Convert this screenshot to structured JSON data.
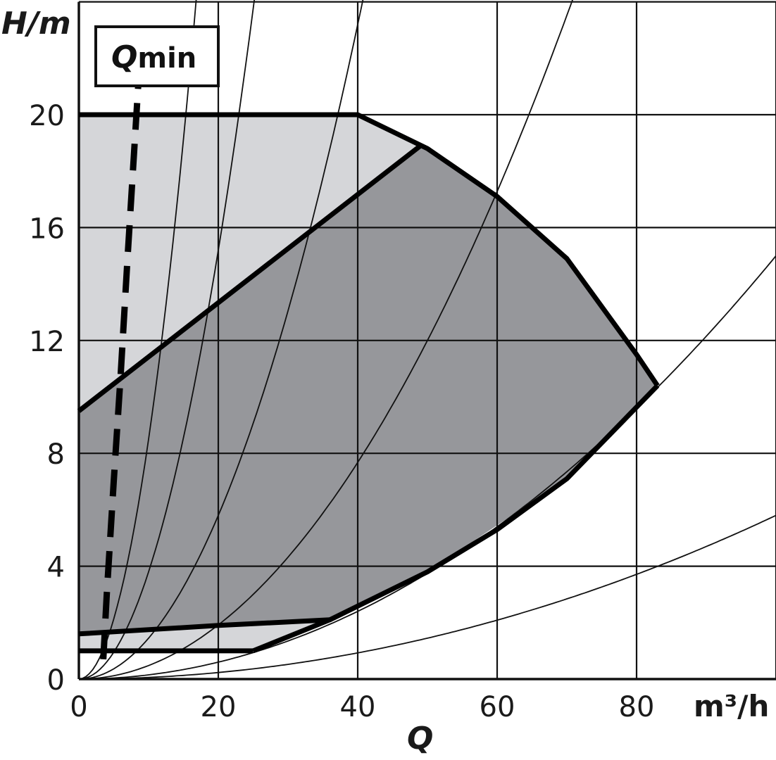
{
  "chart_data": {
    "type": "area",
    "xlabel": "Q",
    "xunit": "m³/h",
    "ylabel": "H/m",
    "xlim": [
      0,
      100
    ],
    "ylim": [
      0,
      24
    ],
    "x_ticks": [
      0,
      20,
      40,
      60,
      80
    ],
    "y_ticks": [
      0,
      4,
      8,
      12,
      16,
      20
    ],
    "grid": true,
    "annotation": "Qmin",
    "qmin_line": [
      [
        3.5,
        0.7
      ],
      [
        4,
        3
      ],
      [
        5,
        7
      ],
      [
        6,
        10.8
      ],
      [
        7,
        15
      ],
      [
        8.5,
        21
      ]
    ],
    "max_envelope": [
      [
        0,
        20
      ],
      [
        40,
        20
      ],
      [
        50,
        18.8
      ],
      [
        60,
        17.1
      ],
      [
        70,
        14.9
      ],
      [
        80,
        11.5
      ],
      [
        83,
        10.4
      ]
    ],
    "operating_region_light": [
      [
        0,
        20
      ],
      [
        40,
        20
      ],
      [
        49,
        18.9
      ],
      [
        0,
        9.5
      ]
    ],
    "operating_region_dark": [
      [
        0,
        9.5
      ],
      [
        49,
        18.9
      ],
      [
        60,
        17.1
      ],
      [
        70,
        14.9
      ],
      [
        80,
        11.5
      ],
      [
        83,
        10.4
      ],
      [
        70,
        7.1
      ],
      [
        50,
        3.8
      ],
      [
        36,
        2.1
      ],
      [
        0,
        1.6
      ]
    ],
    "lower_region_light": [
      [
        0,
        1.6
      ],
      [
        36,
        2.1
      ],
      [
        25,
        1.0
      ],
      [
        0,
        1.0
      ]
    ],
    "min_curve": [
      [
        0,
        1.6
      ],
      [
        20,
        1.9
      ],
      [
        36,
        2.1
      ]
    ],
    "min_flat": [
      [
        0,
        1.0
      ],
      [
        25,
        1.0
      ]
    ],
    "lower_envelope": [
      [
        25,
        1.0
      ],
      [
        36,
        2.1
      ],
      [
        50,
        3.8
      ],
      [
        60,
        5.3
      ],
      [
        70,
        7.1
      ],
      [
        83,
        10.4
      ]
    ],
    "system_curves": [
      {
        "k": 0.00058
      },
      {
        "k": 0.0015
      },
      {
        "k": 0.0048
      },
      {
        "k": 0.0145
      },
      {
        "k": 0.038
      },
      {
        "k": 0.085
      }
    ]
  }
}
